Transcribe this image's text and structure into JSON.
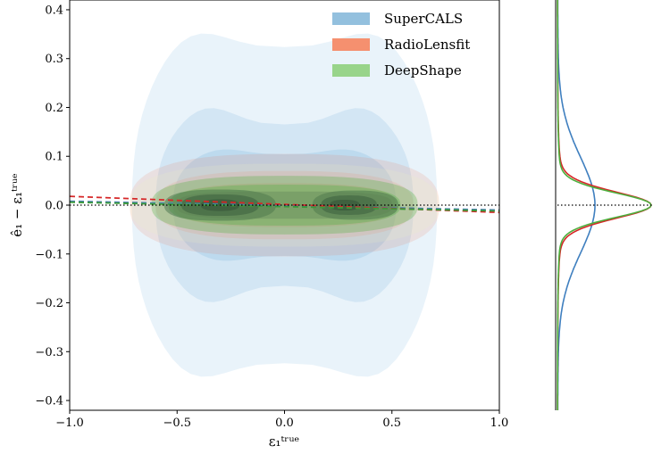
{
  "chart_data": [
    {
      "type": "density-contour",
      "title": "",
      "xlabel": "ε₁ᵗʳᵘᵉ",
      "ylabel": "ê₁ − ε₁ᵗʳᵘᵉ",
      "xlim": [
        -1.0,
        1.0
      ],
      "ylim": [
        -0.42,
        0.42
      ],
      "xticks": [
        -1.0,
        -0.5,
        0.0,
        0.5,
        1.0
      ],
      "xtick_labels": [
        "−1.0",
        "−0.5",
        "0.0",
        "0.5",
        "1.0"
      ],
      "yticks": [
        -0.4,
        -0.3,
        -0.2,
        -0.1,
        0.0,
        0.1,
        0.2,
        0.3,
        0.4
      ],
      "ytick_labels": [
        "−0.4",
        "−0.3",
        "−0.2",
        "−0.1",
        "0.0",
        "0.1",
        "0.2",
        "0.3",
        "0.4"
      ],
      "legend": {
        "placement": "top-right",
        "entries": [
          "SuperCALS",
          "RadioLensfit",
          "DeepShape"
        ]
      },
      "series": [
        {
          "name": "SuperCALS",
          "color": "#4d9ad4",
          "contour_extent": {
            "x": [
              -0.72,
              0.72
            ],
            "y": [
              -0.38,
              0.38
            ]
          },
          "fit_line": {
            "x": [
              -1.0,
              1.0
            ],
            "y": [
              0.008,
              -0.01
            ]
          }
        },
        {
          "name": "RadioLensfit",
          "color": "#ee5a30",
          "contour_extent": {
            "x": [
              -0.72,
              0.72
            ],
            "y": [
              -0.1,
              0.1
            ]
          },
          "fit_line": {
            "x": [
              -1.0,
              1.0
            ],
            "y": [
              0.018,
              -0.015
            ]
          }
        },
        {
          "name": "DeepShape",
          "color": "#4caf3d",
          "contour_extent": {
            "x": [
              -0.72,
              0.72
            ],
            "y": [
              -0.07,
              0.07
            ]
          },
          "fit_line": {
            "x": [
              -1.0,
              1.0
            ],
            "y": [
              0.006,
              -0.012
            ]
          }
        }
      ],
      "reference_line": {
        "y": 0.0,
        "style": "dotted"
      }
    },
    {
      "type": "line",
      "title": "",
      "orientation": "vertical",
      "ylim": [
        -0.42,
        0.42
      ],
      "description_series": [
        {
          "name": "SuperCALS",
          "color": "#3f7fbf",
          "peak": 0.08
        },
        {
          "name": "RadioLensfit",
          "color": "#d62728",
          "peak": 0.2
        },
        {
          "name": "DeepShape",
          "color": "#4caf3d",
          "peak": 0.2
        }
      ],
      "reference_line": {
        "y": 0.0,
        "style": "dotted"
      }
    }
  ]
}
